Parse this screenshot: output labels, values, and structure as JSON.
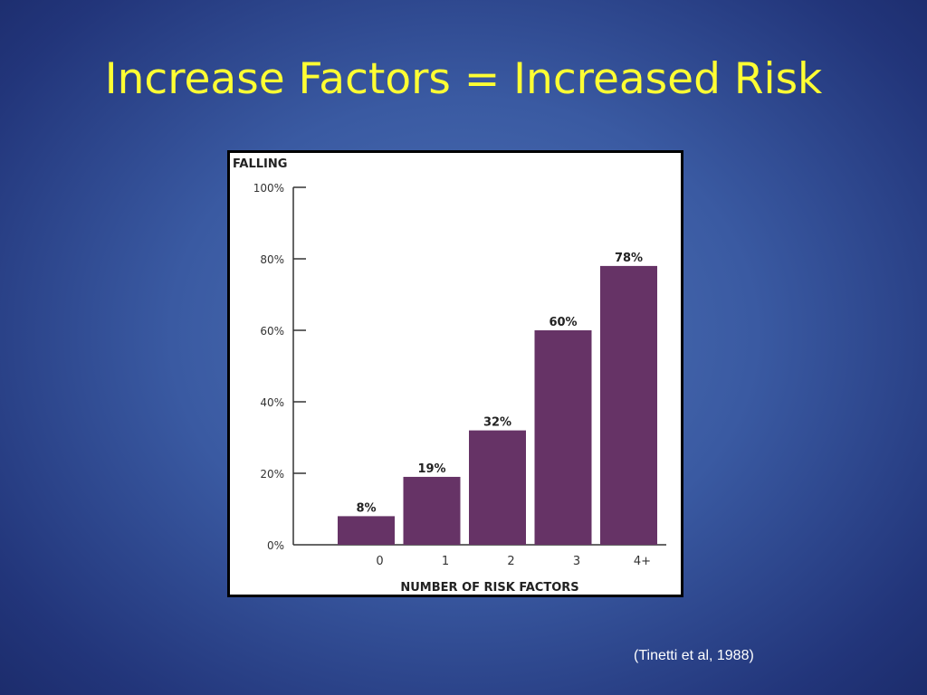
{
  "slide": {
    "title": "Increase Factors = Increased Risk",
    "citation": "(Tinetti et al, 1988)",
    "colors": {
      "title": "#ffff33",
      "background": "#3a5aa2",
      "bar": "#663366"
    }
  },
  "chart_data": {
    "type": "bar",
    "title": "FALLING",
    "xlabel": "NUMBER OF RISK FACTORS",
    "ylabel": "",
    "categories": [
      "0",
      "1",
      "2",
      "3",
      "4+"
    ],
    "values": [
      8,
      19,
      32,
      60,
      78
    ],
    "data_labels": [
      "8%",
      "19%",
      "32%",
      "60%",
      "78%"
    ],
    "yticks": [
      0,
      20,
      40,
      60,
      80,
      100
    ],
    "ytick_labels": [
      "0%",
      "20%",
      "40%",
      "60%",
      "80%",
      "100%"
    ],
    "ylim": [
      0,
      100
    ],
    "grid": false,
    "legend": "none"
  }
}
